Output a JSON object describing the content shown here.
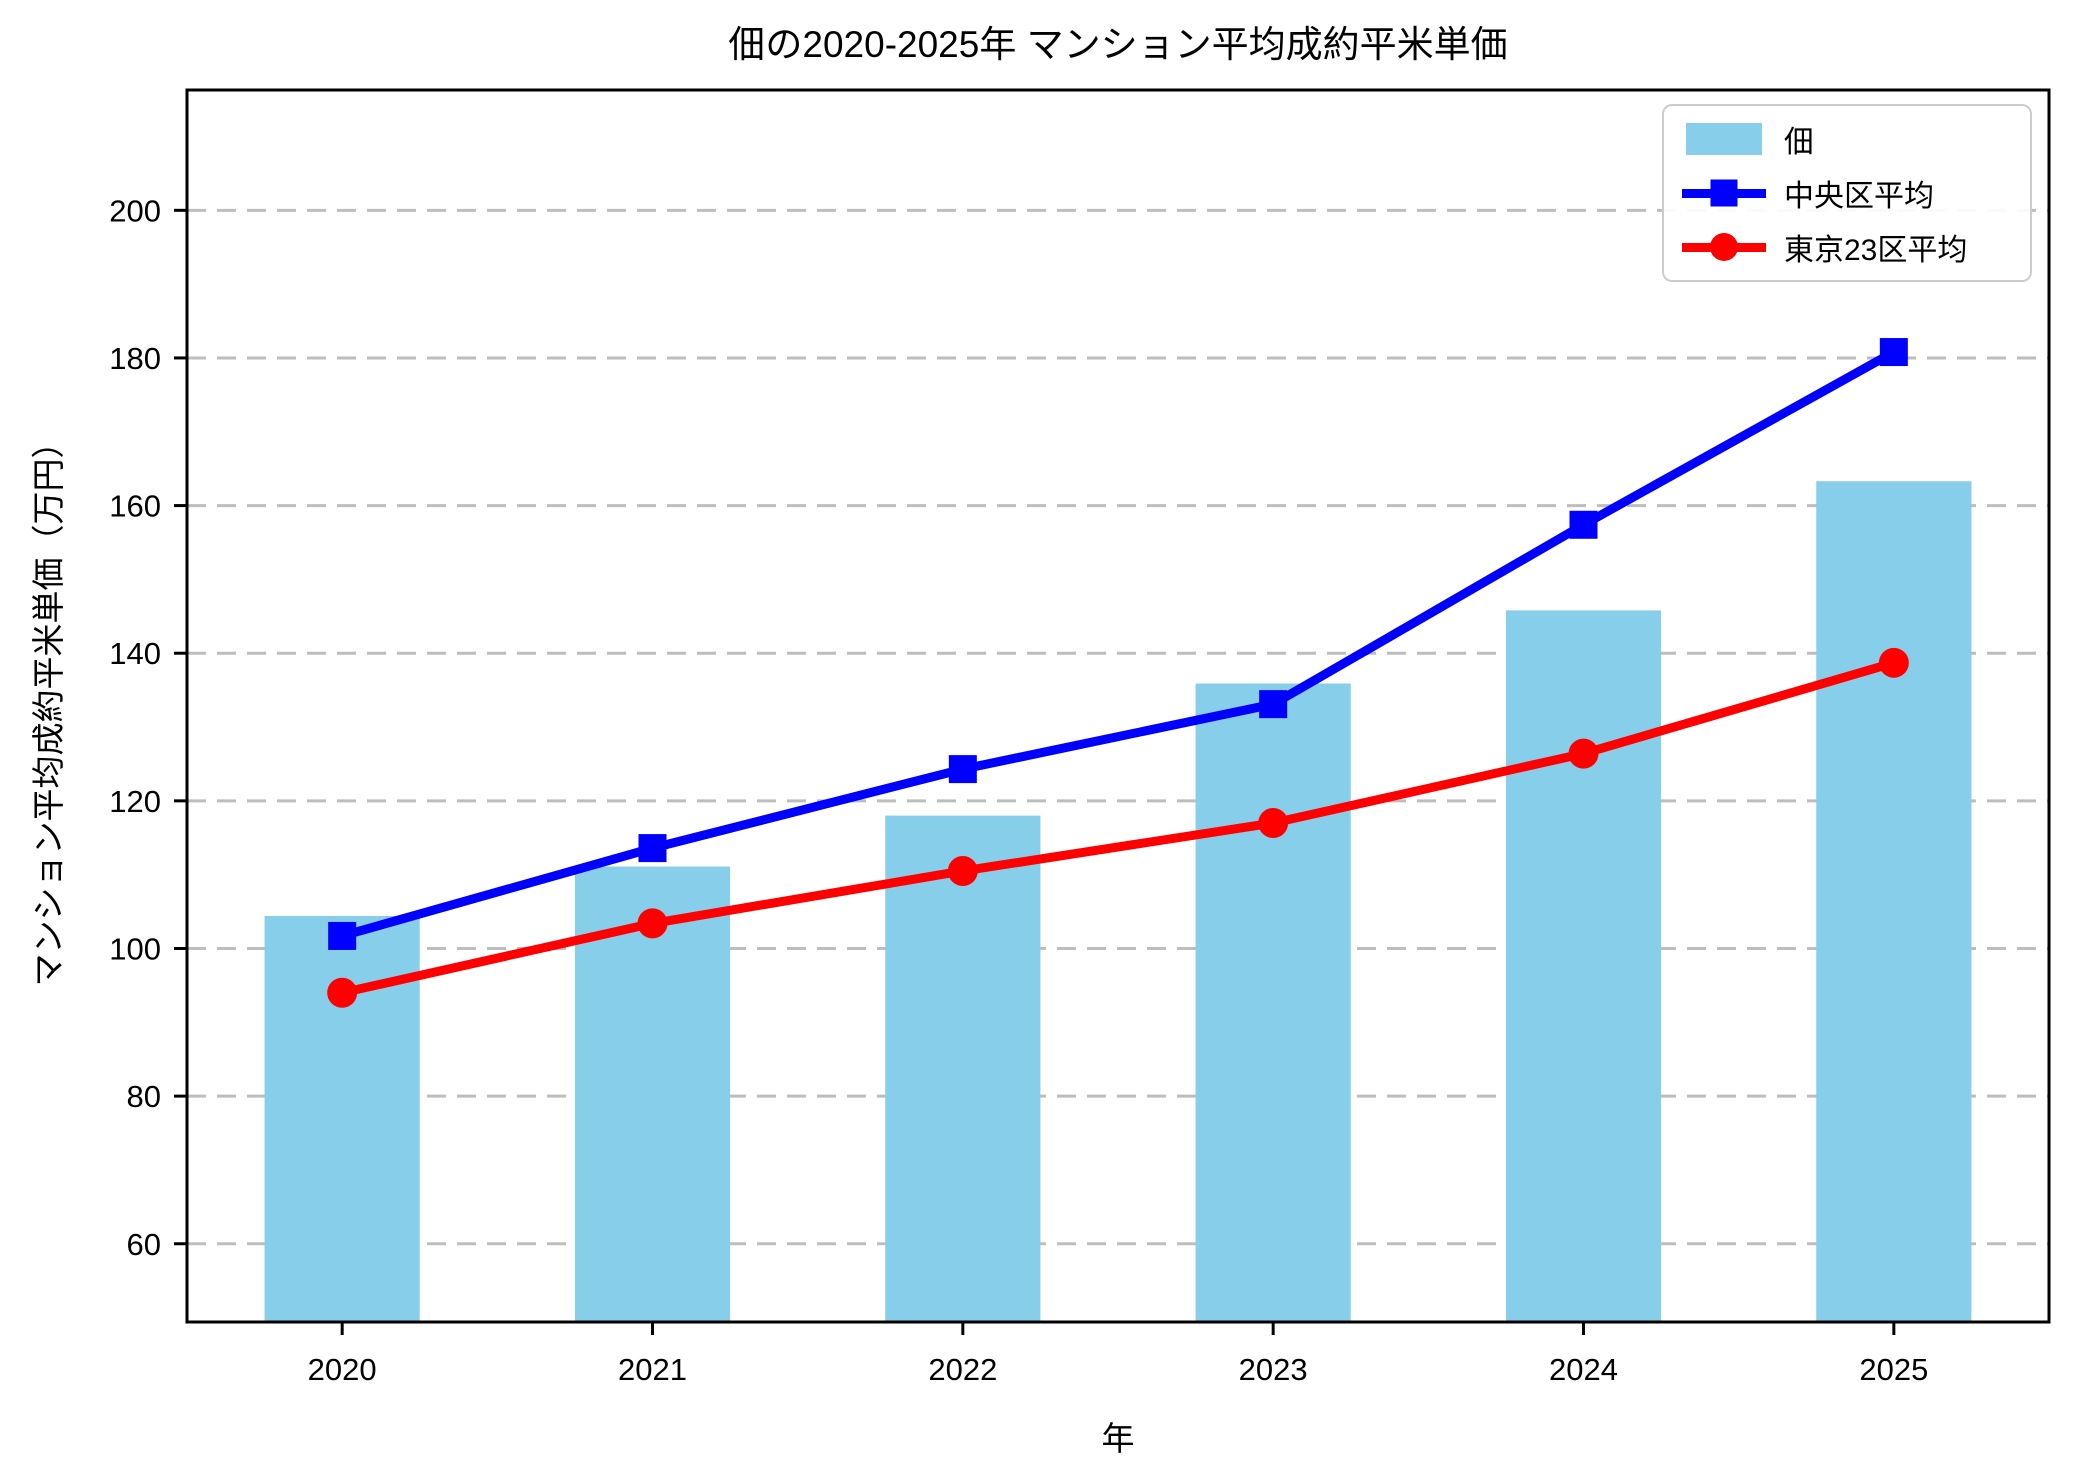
{
  "chart_data": {
    "type": "bar",
    "title": "佃の2020-2025年 マンション平均成約平米単価",
    "xlabel": "年",
    "ylabel": "マンション平均成約平米単価（万円）",
    "categories": [
      "2020",
      "2021",
      "2022",
      "2023",
      "2024",
      "2025"
    ],
    "series": [
      {
        "name": "佃",
        "type": "bar",
        "color": "#87CEEB",
        "values": [
          104.4,
          111.1,
          118.0,
          135.9,
          145.8,
          163.3
        ]
      },
      {
        "name": "中央区平均",
        "type": "line",
        "marker": "square",
        "color": "#0000FF",
        "values": [
          101.7,
          113.6,
          124.3,
          133.1,
          157.4,
          180.8
        ]
      },
      {
        "name": "東京23区平均",
        "type": "line",
        "marker": "circle",
        "color": "#FF0000",
        "values": [
          94.0,
          103.4,
          110.5,
          117.0,
          126.4,
          138.7
        ]
      }
    ],
    "yticks": [
      60,
      80,
      100,
      120,
      140,
      160,
      180,
      200
    ],
    "ylim": [
      49.4,
      216.3
    ],
    "grid": "horizontal dashed",
    "grid_color": "#bdbdbd",
    "legend_position": "upper right"
  }
}
